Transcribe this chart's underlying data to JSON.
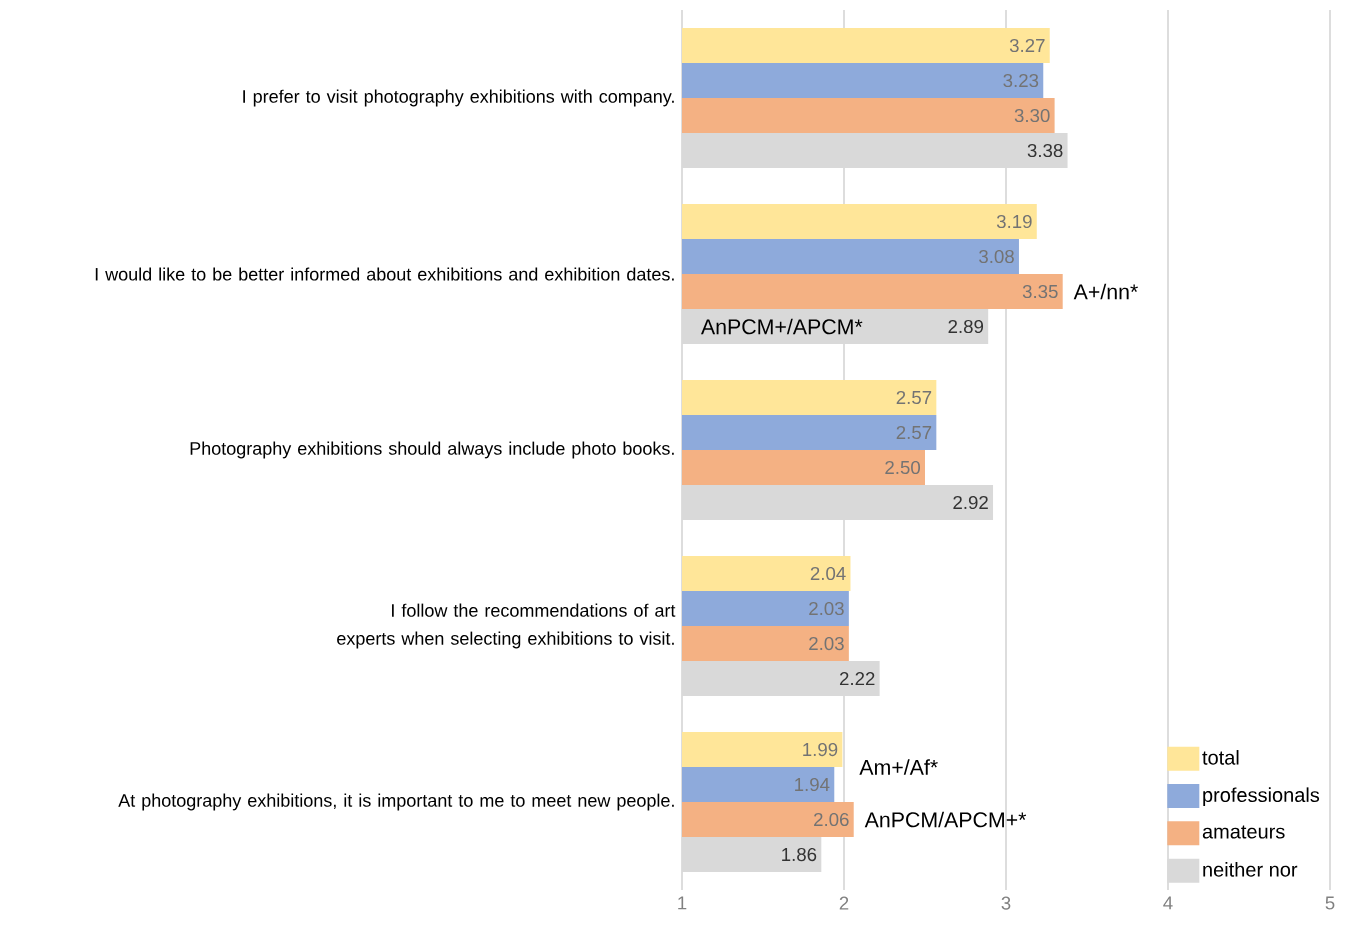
{
  "chart_data": {
    "type": "bar",
    "orientation": "horizontal",
    "categories": [
      "I prefer to visit photography exhibitions with company.",
      "I would like to be better informed about exhibitions and exhibition dates.",
      "Photography exhibitions should always include photo books.",
      "I follow the recommendations of art experts when selecting exhibitions to visit.",
      "At photography exhibitions, it is important to me to meet new people."
    ],
    "series": [
      {
        "name": "total",
        "color": "#ffe699",
        "values": [
          3.27,
          3.19,
          2.57,
          2.04,
          1.99
        ],
        "value_labels": [
          "3.27",
          "3.19",
          "2.57",
          "2.04",
          "1.99"
        ]
      },
      {
        "name": "professionals",
        "color": "#8eaadb",
        "values": [
          3.23,
          3.08,
          2.57,
          2.03,
          1.94
        ],
        "value_labels": [
          "3.23",
          "3.08",
          "2.57",
          "2.03",
          "1.94"
        ]
      },
      {
        "name": "amateurs",
        "color": "#f4b183",
        "values": [
          3.3,
          3.35,
          2.5,
          2.03,
          2.06
        ],
        "value_labels": [
          "3.30",
          "3.35",
          "2.50",
          "2.03",
          "2.06"
        ]
      },
      {
        "name": "neither nor",
        "color": "#d9d9d9",
        "values": [
          3.38,
          2.89,
          2.92,
          2.22,
          1.86
        ],
        "value_labels": [
          "3.38",
          "2.89",
          "2.92",
          "2.22",
          "1.86"
        ]
      }
    ],
    "xlim": [
      1,
      5
    ],
    "xticks": [
      1,
      2,
      3,
      4,
      5
    ],
    "grid": "x",
    "legend": "bottom right",
    "annotations": [
      "A+/nn*",
      "AnPCM+/APCM*",
      "Am+/Af*",
      "AnPCM/APCM+*"
    ]
  }
}
